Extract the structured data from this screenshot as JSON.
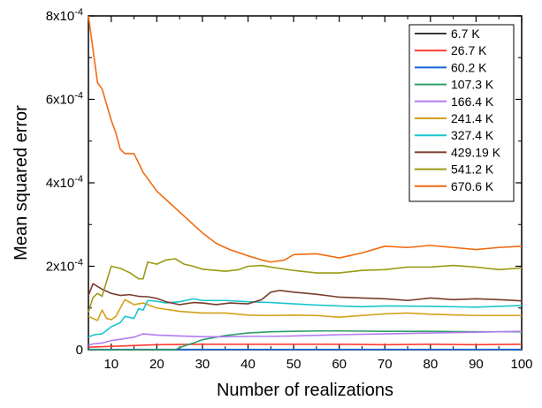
{
  "chart_data": {
    "type": "line",
    "title": "",
    "xlabel": "Number of realizations",
    "ylabel": "Mean squared error",
    "xlim": [
      5,
      100
    ],
    "ylim": [
      0,
      0.0008
    ],
    "x_ticks": [
      10,
      20,
      30,
      40,
      50,
      60,
      70,
      80,
      90,
      100
    ],
    "x_tick_labels": [
      "10",
      "20",
      "30",
      "40",
      "50",
      "60",
      "70",
      "80",
      "90",
      "100"
    ],
    "y_ticks": [
      0,
      0.0002,
      0.0004,
      0.0006,
      0.0008
    ],
    "y_tick_labels": [
      "0",
      "2x10-4",
      "4x10-4",
      "6x10-4",
      "8x10-4"
    ],
    "grid": false,
    "legend_position": "top-right",
    "series": [
      {
        "name": "6.7 K",
        "color": "#3a3a3a",
        "points": [
          [
            5,
            3e-07
          ],
          [
            100,
            3e-07
          ]
        ]
      },
      {
        "name": "26.7 K",
        "color": "#ff3b30",
        "points": [
          [
            5,
            6e-06
          ],
          [
            10,
            8e-06
          ],
          [
            20,
            1.2e-05
          ],
          [
            30,
            1.3e-05
          ],
          [
            40,
            1.3e-05
          ],
          [
            50,
            1.3e-05
          ],
          [
            60,
            1.3e-05
          ],
          [
            70,
            1.2e-05
          ],
          [
            80,
            1.3e-05
          ],
          [
            90,
            1.2e-05
          ],
          [
            100,
            1.3e-05
          ]
        ]
      },
      {
        "name": "60.2 K",
        "color": "#1565d8",
        "points": [
          [
            5,
            7e-07
          ],
          [
            100,
            7e-07
          ]
        ]
      },
      {
        "name": "107.3 K",
        "color": "#2e9e6b",
        "points": [
          [
            5,
            0.0
          ],
          [
            24,
            0.0
          ],
          [
            26,
            9e-06
          ],
          [
            28,
            1.6e-05
          ],
          [
            30,
            2.4e-05
          ],
          [
            35,
            3.4e-05
          ],
          [
            40,
            4e-05
          ],
          [
            45,
            4.3e-05
          ],
          [
            50,
            4.4e-05
          ],
          [
            55,
            4.5e-05
          ],
          [
            60,
            4.5e-05
          ],
          [
            70,
            4.4e-05
          ],
          [
            80,
            4.4e-05
          ],
          [
            90,
            4.3e-05
          ],
          [
            100,
            4.3e-05
          ]
        ]
      },
      {
        "name": "166.4 K",
        "color": "#b07cf0",
        "points": [
          [
            5,
            1e-05
          ],
          [
            6,
            1.4e-05
          ],
          [
            8,
            1.6e-05
          ],
          [
            10,
            2.2e-05
          ],
          [
            12,
            2.5e-05
          ],
          [
            15,
            3e-05
          ],
          [
            17,
            3.8e-05
          ],
          [
            20,
            3.5e-05
          ],
          [
            25,
            3.3e-05
          ],
          [
            30,
            3.1e-05
          ],
          [
            35,
            3.1e-05
          ],
          [
            40,
            3.2e-05
          ],
          [
            45,
            3.2e-05
          ],
          [
            50,
            3.3e-05
          ],
          [
            60,
            3.6e-05
          ],
          [
            70,
            3.8e-05
          ],
          [
            80,
            4e-05
          ],
          [
            90,
            4.2e-05
          ],
          [
            100,
            4.4e-05
          ]
        ]
      },
      {
        "name": "241.4 K",
        "color": "#d4a017",
        "points": [
          [
            5,
            8e-05
          ],
          [
            6,
            7.5e-05
          ],
          [
            7,
            7e-05
          ],
          [
            8,
            9.5e-05
          ],
          [
            9,
            7.5e-05
          ],
          [
            10,
            7.2e-05
          ],
          [
            11,
            8e-05
          ],
          [
            13,
            0.00012
          ],
          [
            15,
            0.000108
          ],
          [
            17,
            0.000112
          ],
          [
            20,
            0.0001
          ],
          [
            25,
            9.2e-05
          ],
          [
            30,
            8.8e-05
          ],
          [
            35,
            8.8e-05
          ],
          [
            40,
            8.3e-05
          ],
          [
            45,
            8.2e-05
          ],
          [
            50,
            8.3e-05
          ],
          [
            55,
            8.2e-05
          ],
          [
            60,
            7.8e-05
          ],
          [
            70,
            8.6e-05
          ],
          [
            75,
            8.8e-05
          ],
          [
            80,
            8.5e-05
          ],
          [
            90,
            8.2e-05
          ],
          [
            100,
            8.2e-05
          ]
        ]
      },
      {
        "name": "327.4 K",
        "color": "#19c6cf",
        "points": [
          [
            5,
            3e-05
          ],
          [
            6,
            3.5e-05
          ],
          [
            7,
            3.7e-05
          ],
          [
            8,
            3.8e-05
          ],
          [
            10,
            5.5e-05
          ],
          [
            12,
            6.5e-05
          ],
          [
            13,
            8e-05
          ],
          [
            15,
            7.5e-05
          ],
          [
            16,
            9.8e-05
          ],
          [
            17,
            9.5e-05
          ],
          [
            18,
            0.000118
          ],
          [
            20,
            0.000116
          ],
          [
            22,
            0.000112
          ],
          [
            25,
            0.000115
          ],
          [
            28,
            0.000122
          ],
          [
            30,
            0.000118
          ],
          [
            35,
            0.000118
          ],
          [
            40,
            0.000115
          ],
          [
            45,
            0.000113
          ],
          [
            50,
            0.00011
          ],
          [
            55,
            0.000107
          ],
          [
            60,
            0.000105
          ],
          [
            65,
            0.000103
          ],
          [
            70,
            0.000105
          ],
          [
            80,
            0.000104
          ],
          [
            90,
            0.000102
          ],
          [
            100,
            0.000106
          ]
        ]
      },
      {
        "name": "429.19 K",
        "color": "#7a3b2e",
        "points": [
          [
            5,
            0.00013
          ],
          [
            6,
            0.000158
          ],
          [
            8,
            0.000145
          ],
          [
            10,
            0.000135
          ],
          [
            12,
            0.00013
          ],
          [
            14,
            0.000132
          ],
          [
            16,
            0.000128
          ],
          [
            18,
            0.000127
          ],
          [
            20,
            0.000123
          ],
          [
            22,
            0.000115
          ],
          [
            25,
            0.000108
          ],
          [
            28,
            0.000113
          ],
          [
            30,
            0.000112
          ],
          [
            33,
            0.000108
          ],
          [
            36,
            0.000112
          ],
          [
            40,
            0.00011
          ],
          [
            43,
            0.00012
          ],
          [
            45,
            0.000138
          ],
          [
            47,
            0.000142
          ],
          [
            50,
            0.000138
          ],
          [
            55,
            0.000133
          ],
          [
            60,
            0.000126
          ],
          [
            65,
            0.000124
          ],
          [
            70,
            0.000122
          ],
          [
            75,
            0.000118
          ],
          [
            80,
            0.000124
          ],
          [
            85,
            0.00012
          ],
          [
            90,
            0.000122
          ],
          [
            95,
            0.00012
          ],
          [
            100,
            0.000117
          ]
        ]
      },
      {
        "name": "541.2 K",
        "color": "#9c9a16",
        "points": [
          [
            5,
            9e-05
          ],
          [
            6,
            0.000125
          ],
          [
            7,
            0.000135
          ],
          [
            8,
            0.000128
          ],
          [
            10,
            0.0002
          ],
          [
            12,
            0.000195
          ],
          [
            14,
            0.000185
          ],
          [
            16,
            0.00017
          ],
          [
            17,
            0.00017
          ],
          [
            18,
            0.00021
          ],
          [
            20,
            0.000205
          ],
          [
            22,
            0.000215
          ],
          [
            24,
            0.000218
          ],
          [
            26,
            0.000205
          ],
          [
            28,
            0.0002
          ],
          [
            30,
            0.000193
          ],
          [
            33,
            0.00019
          ],
          [
            35,
            0.000188
          ],
          [
            38,
            0.000192
          ],
          [
            40,
            0.0002
          ],
          [
            43,
            0.000202
          ],
          [
            45,
            0.000198
          ],
          [
            50,
            0.00019
          ],
          [
            55,
            0.000184
          ],
          [
            60,
            0.000184
          ],
          [
            65,
            0.00019
          ],
          [
            70,
            0.000192
          ],
          [
            75,
            0.000198
          ],
          [
            80,
            0.000198
          ],
          [
            85,
            0.000202
          ],
          [
            90,
            0.000198
          ],
          [
            95,
            0.000192
          ],
          [
            100,
            0.000196
          ]
        ]
      },
      {
        "name": "670.6 K",
        "color": "#f26a10",
        "points": [
          [
            5,
            0.0008
          ],
          [
            6,
            0.00072
          ],
          [
            7,
            0.00064
          ],
          [
            8,
            0.000625
          ],
          [
            10,
            0.00055
          ],
          [
            11,
            0.00052
          ],
          [
            12,
            0.00048
          ],
          [
            13,
            0.00047
          ],
          [
            15,
            0.00047
          ],
          [
            17,
            0.000425
          ],
          [
            20,
            0.00038
          ],
          [
            23,
            0.00035
          ],
          [
            26,
            0.00032
          ],
          [
            30,
            0.00028
          ],
          [
            33,
            0.000255
          ],
          [
            36,
            0.00024
          ],
          [
            40,
            0.000225
          ],
          [
            43,
            0.000215
          ],
          [
            45,
            0.00021
          ],
          [
            48,
            0.000215
          ],
          [
            50,
            0.000228
          ],
          [
            55,
            0.00023
          ],
          [
            60,
            0.00022
          ],
          [
            65,
            0.000232
          ],
          [
            70,
            0.000248
          ],
          [
            75,
            0.000245
          ],
          [
            80,
            0.00025
          ],
          [
            85,
            0.000245
          ],
          [
            90,
            0.00024
          ],
          [
            95,
            0.000245
          ],
          [
            100,
            0.000248
          ]
        ]
      }
    ]
  }
}
